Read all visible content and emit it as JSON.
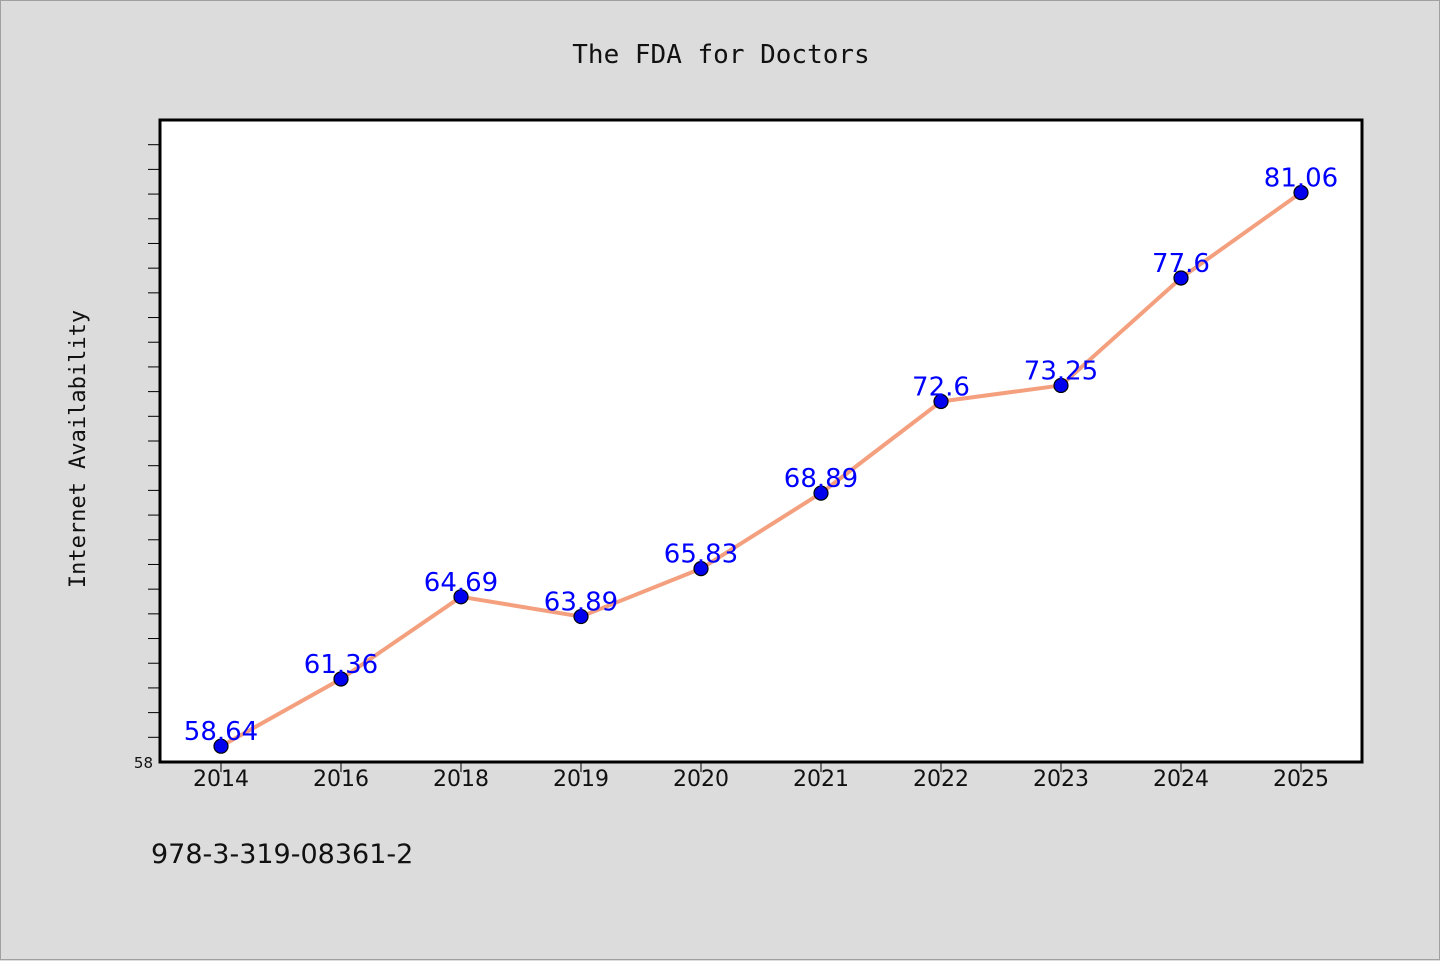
{
  "chart_data": {
    "type": "line",
    "title": "The FDA for Doctors",
    "xlabel": "",
    "ylabel": "Internet Availability",
    "categories": [
      "2014",
      "2016",
      "2018",
      "2019",
      "2020",
      "2021",
      "2022",
      "2023",
      "2024",
      "2025"
    ],
    "series": [
      {
        "values": [
          58.64,
          61.36,
          64.69,
          63.89,
          65.83,
          68.89,
          72.6,
          73.25,
          77.6,
          81.06
        ],
        "value_labels": [
          "58.64",
          "61.36",
          "64.69",
          "63.89",
          "65.83",
          "68.89",
          "72.6",
          "73.25",
          "77.6",
          "81.06"
        ],
        "line_color": "#f4a07e",
        "marker_color": "#0000ee",
        "label_color": "#0000ff"
      }
    ],
    "y_tick_labels": [
      "58"
    ],
    "ylim": [
      58,
      84
    ],
    "grid": false,
    "background": "#ffffff",
    "page_background": "#dcdcdc"
  },
  "footer_text": "978-3-319-08361-2"
}
